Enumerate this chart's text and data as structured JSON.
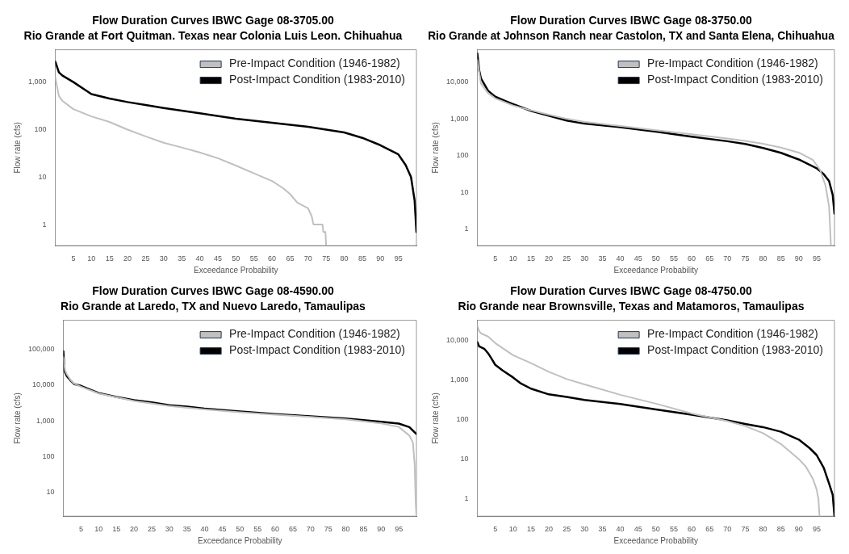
{
  "chart_data": [
    {
      "type": "line",
      "title": "Flow Duration Curves IBWC Gage 08-3705.00",
      "subtitle": "Rio Grande at Fort Quitman. Texas near Colonia Luis Leon. Chihuahua",
      "xlabel": "Exceedance Probability",
      "ylabel": "Flow rate (cfs)",
      "xlim": [
        0,
        100
      ],
      "xticks": [
        5,
        10,
        15,
        20,
        25,
        30,
        35,
        40,
        45,
        50,
        55,
        60,
        65,
        70,
        75,
        80,
        85,
        90,
        95
      ],
      "ylim": [
        0.36,
        4800
      ],
      "yticks": [
        1,
        10,
        100,
        {
          "value": 1000,
          "label": "1,000"
        }
      ],
      "log": "y",
      "grid": false,
      "legend": "top right",
      "marker": "none",
      "line_style": "solid",
      "series": [
        {
          "name": "Pre-Impact Condition (1946-1982)",
          "color": "#c0c0c0",
          "x": [
            0,
            0.5,
            1,
            2,
            5,
            10,
            15,
            20,
            25,
            30,
            35,
            40,
            45,
            50,
            55,
            60,
            63,
            65,
            67,
            70,
            71,
            71.5,
            74,
            74.2,
            74.8,
            75
          ],
          "values": [
            1250,
            800,
            510,
            400,
            270,
            190,
            145,
            100,
            72,
            53,
            42,
            33,
            25,
            17.5,
            12,
            8.3,
            5.9,
            4.4,
            2.9,
            2.2,
            1.5,
            1,
            1,
            0.7,
            0.7,
            0.36
          ]
        },
        {
          "name": "Post-Impact Condition (1983-2010)",
          "color": "#000000",
          "x": [
            0,
            1,
            2,
            5,
            10,
            15,
            20,
            25,
            30,
            40,
            50,
            60,
            70,
            75,
            80,
            85,
            90,
            95,
            97,
            98.5,
            99.5,
            100
          ],
          "values": [
            2700,
            1600,
            1370,
            1000,
            560,
            450,
            380,
            330,
            285,
            220,
            170,
            140,
            115,
            100,
            87,
            67,
            47,
            30,
            18,
            10,
            3.2,
            0.7
          ]
        }
      ]
    },
    {
      "type": "line",
      "title": "Flow Duration Curves IBWC Gage 08-3750.00",
      "subtitle": "Rio Grande at Johnson Ranch near Castolon, TX and Santa Elena, Chihuahua",
      "xlabel": "Exceedance Probability",
      "ylabel": "Flow rate (cfs)",
      "xlim": [
        0,
        100
      ],
      "xticks": [
        5,
        10,
        15,
        20,
        25,
        30,
        35,
        40,
        45,
        50,
        55,
        60,
        65,
        70,
        75,
        80,
        85,
        90,
        95
      ],
      "ylim": [
        0.35,
        76000
      ],
      "yticks": [
        1,
        10,
        100,
        {
          "value": 1000,
          "label": "1,000"
        },
        {
          "value": 10000,
          "label": "10,000"
        }
      ],
      "log": "y",
      "grid": false,
      "legend": "top right",
      "marker": "none",
      "line_style": "solid",
      "series": [
        {
          "name": "Pre-Impact Condition (1946-1982)",
          "color": "#c0c0c0",
          "x": [
            0,
            1,
            3,
            5,
            10,
            15,
            20,
            25,
            30,
            40,
            50,
            60,
            70,
            75,
            80,
            85,
            90,
            94,
            96,
            97.5,
            98.5,
            99
          ],
          "values": [
            40000,
            9000,
            5000,
            3600,
            2300,
            1700,
            1300,
            1000,
            820,
            640,
            490,
            380,
            290,
            250,
            210,
            165,
            120,
            75,
            40,
            15,
            4,
            0.35
          ]
        },
        {
          "name": "Post-Impact Condition (1983-2010)",
          "color": "#000000",
          "x": [
            0,
            0.5,
            1,
            3,
            5,
            8,
            10,
            15,
            20,
            25,
            30,
            40,
            50,
            60,
            70,
            75,
            80,
            85,
            90,
            95,
            97,
            98.5,
            99.5,
            100
          ],
          "values": [
            60000,
            21000,
            12500,
            5800,
            4000,
            3000,
            2500,
            1650,
            1220,
            900,
            740,
            590,
            445,
            325,
            245,
            207,
            160,
            118,
            78,
            45,
            31,
            20,
            8.5,
            2.6
          ]
        }
      ]
    },
    {
      "type": "line",
      "title": "Flow Duration Curves IBWC Gage 08-4590.00",
      "subtitle": "Rio Grande at Laredo, TX and Nuevo Laredo, Tamaulipas",
      "xlabel": "Exceedance Probability",
      "ylabel": "Flow rate (cfs)",
      "xlim": [
        0,
        100
      ],
      "xticks": [
        5,
        10,
        15,
        20,
        25,
        30,
        35,
        40,
        45,
        50,
        55,
        60,
        65,
        70,
        75,
        80,
        85,
        90,
        95
      ],
      "ylim": [
        2.2,
        640000
      ],
      "yticks": [
        10,
        100,
        {
          "value": 1000,
          "label": "1,000"
        },
        {
          "value": 10000,
          "label": "10,000"
        },
        {
          "value": 100000,
          "label": "100,000"
        }
      ],
      "log": "y",
      "grid": false,
      "legend": "top right",
      "marker": "none",
      "line_style": "solid",
      "series": [
        {
          "name": "Pre-Impact Condition (1946-1982)",
          "color": "#c0c0c0",
          "x": [
            0,
            0.5,
            1,
            2,
            3,
            5,
            10,
            20,
            30,
            40,
            50,
            60,
            70,
            80,
            90,
            95,
            98,
            99,
            99.5,
            99.8,
            100
          ],
          "values": [
            60000,
            25000,
            20000,
            14000,
            11000,
            9000,
            5800,
            3600,
            2600,
            2100,
            1750,
            1500,
            1300,
            1100,
            850,
            680,
            390,
            250,
            60,
            5,
            2.2
          ]
        },
        {
          "name": "Post-Impact Condition (1983-2010)",
          "color": "#000000",
          "x": [
            0,
            0.3,
            1,
            2,
            3,
            5,
            10,
            15,
            20,
            25,
            30,
            35,
            40,
            50,
            60,
            70,
            80,
            90,
            95,
            98,
            100
          ],
          "values": [
            87000,
            25000,
            17500,
            13500,
            10700,
            9500,
            6000,
            4650,
            3800,
            3300,
            2750,
            2500,
            2200,
            1830,
            1560,
            1350,
            1170,
            950,
            840,
            670,
            430
          ]
        }
      ]
    },
    {
      "type": "line",
      "title": "Flow Duration Curves IBWC Gage 08-4750.00",
      "subtitle": "Rio Grande near Brownsville, Texas and Matamoros, Tamaulipas",
      "xlabel": "Exceedance Probability",
      "ylabel": "Flow rate (cfs)",
      "xlim": [
        0,
        100
      ],
      "xticks": [
        5,
        10,
        15,
        20,
        25,
        30,
        35,
        40,
        45,
        50,
        55,
        60,
        65,
        70,
        75,
        80,
        85,
        90,
        95
      ],
      "ylim": [
        0.36,
        32000
      ],
      "yticks": [
        1,
        10,
        100,
        {
          "value": 1000,
          "label": "1,000"
        },
        {
          "value": 10000,
          "label": "10,000"
        }
      ],
      "log": "y",
      "grid": false,
      "legend": "top right",
      "marker": "none",
      "line_style": "solid",
      "series": [
        {
          "name": "Pre-Impact Condition (1946-1982)",
          "color": "#c0c0c0",
          "x": [
            0,
            0.5,
            1,
            3,
            5,
            10,
            15,
            20,
            25,
            30,
            40,
            50,
            60,
            70,
            75,
            80,
            85,
            90,
            92,
            94,
            95,
            95.5,
            95.8
          ],
          "values": [
            23000,
            17000,
            15000,
            12400,
            8500,
            4200,
            2650,
            1600,
            1050,
            770,
            420,
            250,
            142,
            91,
            68,
            45,
            24,
            10,
            6.4,
            3.1,
            1.7,
            1,
            0.36
          ]
        },
        {
          "name": "Post-Impact Condition (1983-2010)",
          "color": "#000000",
          "x": [
            0,
            0.5,
            2,
            3,
            4,
            5,
            7,
            10,
            12,
            15,
            20,
            25,
            30,
            40,
            50,
            60,
            70,
            75,
            80,
            85,
            90,
            93,
            95,
            97,
            98.5,
            99.5,
            100
          ],
          "values": [
            9000,
            7000,
            6000,
            4700,
            3400,
            2400,
            1750,
            1150,
            830,
            600,
            430,
            370,
            310,
            245,
            180,
            132,
            95,
            77,
            64,
            49,
            31,
            19,
            12.6,
            6,
            2.4,
            1.25,
            0.36
          ]
        }
      ]
    }
  ]
}
